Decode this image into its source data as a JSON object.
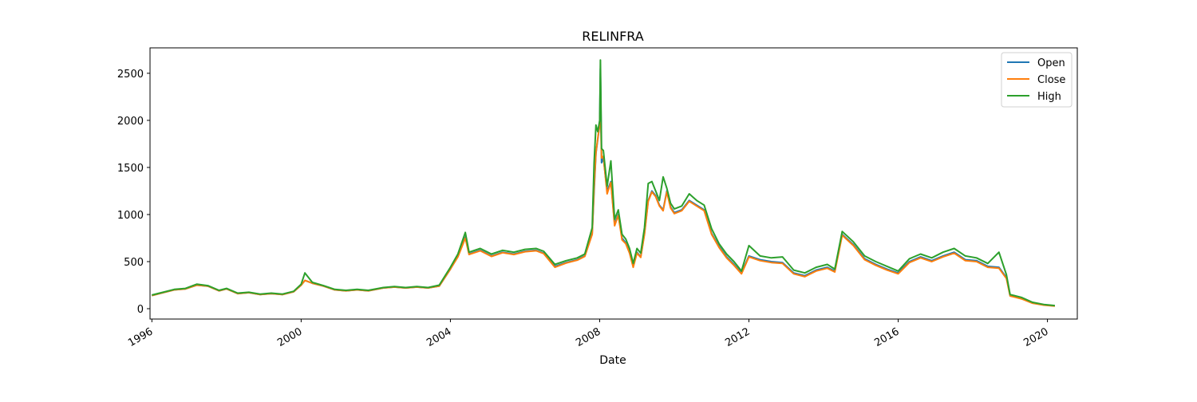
{
  "chart_data": {
    "type": "line",
    "title": "RELINFRA",
    "xlabel": "Date",
    "ylabel": "",
    "x_ticks": [
      "1996",
      "2000",
      "2004",
      "2008",
      "2012",
      "2016",
      "2020"
    ],
    "y_ticks": [
      0,
      500,
      1000,
      1500,
      2000,
      2500
    ],
    "xlim": [
      1995.95,
      2020.8
    ],
    "ylim": [
      -110,
      2770
    ],
    "legend_position": "top-right",
    "x": [
      1996.0,
      1996.3,
      1996.6,
      1996.9,
      1997.2,
      1997.5,
      1997.8,
      1998.0,
      1998.3,
      1998.6,
      1998.9,
      1999.2,
      1999.5,
      1999.8,
      2000.0,
      2000.1,
      2000.3,
      2000.6,
      2000.9,
      2001.2,
      2001.5,
      2001.8,
      2002.2,
      2002.5,
      2002.8,
      2003.1,
      2003.4,
      2003.7,
      2004.0,
      2004.2,
      2004.4,
      2004.5,
      2004.8,
      2005.1,
      2005.4,
      2005.7,
      2006.0,
      2006.3,
      2006.5,
      2006.8,
      2007.1,
      2007.4,
      2007.6,
      2007.8,
      2007.85,
      2007.9,
      2007.95,
      2008.0,
      2008.02,
      2008.05,
      2008.1,
      2008.2,
      2008.3,
      2008.4,
      2008.5,
      2008.6,
      2008.7,
      2008.8,
      2008.9,
      2009.0,
      2009.1,
      2009.2,
      2009.3,
      2009.4,
      2009.5,
      2009.6,
      2009.7,
      2009.8,
      2009.9,
      2010.0,
      2010.2,
      2010.4,
      2010.6,
      2010.8,
      2011.0,
      2011.2,
      2011.4,
      2011.6,
      2011.8,
      2012.0,
      2012.3,
      2012.6,
      2012.9,
      2013.2,
      2013.5,
      2013.8,
      2014.1,
      2014.3,
      2014.5,
      2014.8,
      2015.1,
      2015.4,
      2015.7,
      2016.0,
      2016.3,
      2016.6,
      2016.9,
      2017.2,
      2017.5,
      2017.8,
      2018.1,
      2018.4,
      2018.7,
      2018.9,
      2019.0,
      2019.3,
      2019.6,
      2019.9,
      2020.2
    ],
    "series": [
      {
        "name": "Open",
        "color": "#1f77b4",
        "values": [
          140,
          170,
          200,
          210,
          250,
          240,
          190,
          210,
          160,
          170,
          150,
          160,
          150,
          180,
          250,
          300,
          270,
          240,
          200,
          190,
          200,
          190,
          220,
          230,
          220,
          230,
          220,
          240,
          420,
          560,
          760,
          580,
          620,
          560,
          600,
          580,
          610,
          620,
          590,
          450,
          490,
          520,
          560,
          800,
          1250,
          1650,
          1800,
          1950,
          2550,
          1550,
          1600,
          1250,
          1350,
          900,
          1000,
          750,
          700,
          600,
          450,
          600,
          550,
          800,
          1150,
          1250,
          1200,
          1100,
          1050,
          1250,
          1080,
          1020,
          1050,
          1150,
          1100,
          1050,
          800,
          660,
          550,
          470,
          380,
          560,
          520,
          500,
          490,
          380,
          350,
          410,
          440,
          400,
          790,
          680,
          530,
          470,
          420,
          380,
          500,
          550,
          510,
          560,
          600,
          520,
          510,
          450,
          440,
          330,
          140,
          110,
          60,
          40,
          30
        ]
      },
      {
        "name": "Close",
        "color": "#ff7f0e",
        "values": [
          140,
          170,
          200,
          210,
          250,
          240,
          190,
          210,
          160,
          170,
          150,
          160,
          150,
          180,
          250,
          300,
          270,
          240,
          200,
          190,
          200,
          190,
          220,
          230,
          220,
          230,
          220,
          240,
          420,
          550,
          750,
          575,
          615,
          555,
          595,
          575,
          605,
          615,
          585,
          440,
          485,
          515,
          555,
          790,
          1300,
          1660,
          1810,
          1960,
          2200,
          1600,
          1620,
          1220,
          1340,
          880,
          990,
          730,
          690,
          590,
          440,
          590,
          545,
          790,
          1140,
          1240,
          1190,
          1090,
          1040,
          1240,
          1070,
          1010,
          1040,
          1140,
          1090,
          1040,
          790,
          650,
          540,
          460,
          370,
          550,
          510,
          490,
          480,
          370,
          340,
          400,
          430,
          390,
          780,
          670,
          520,
          460,
          410,
          370,
          490,
          540,
          500,
          550,
          590,
          510,
          500,
          440,
          430,
          320,
          135,
          105,
          58,
          38,
          28
        ]
      },
      {
        "name": "High",
        "color": "#2ca02c",
        "values": [
          145,
          175,
          205,
          215,
          260,
          245,
          195,
          215,
          165,
          175,
          155,
          165,
          155,
          185,
          260,
          380,
          280,
          245,
          205,
          195,
          205,
          195,
          225,
          235,
          225,
          235,
          225,
          250,
          440,
          580,
          810,
          600,
          640,
          580,
          620,
          600,
          630,
          640,
          610,
          470,
          510,
          540,
          580,
          860,
          1550,
          1950,
          1880,
          2000,
          2640,
          1700,
          1680,
          1300,
          1570,
          950,
          1050,
          790,
          740,
          640,
          480,
          640,
          590,
          860,
          1330,
          1350,
          1250,
          1150,
          1400,
          1280,
          1120,
          1060,
          1090,
          1220,
          1150,
          1100,
          850,
          690,
          580,
          500,
          400,
          670,
          560,
          540,
          550,
          410,
          380,
          440,
          470,
          420,
          820,
          710,
          560,
          500,
          450,
          400,
          530,
          580,
          540,
          600,
          640,
          560,
          540,
          480,
          600,
          360,
          150,
          120,
          68,
          45,
          33
        ]
      }
    ]
  }
}
